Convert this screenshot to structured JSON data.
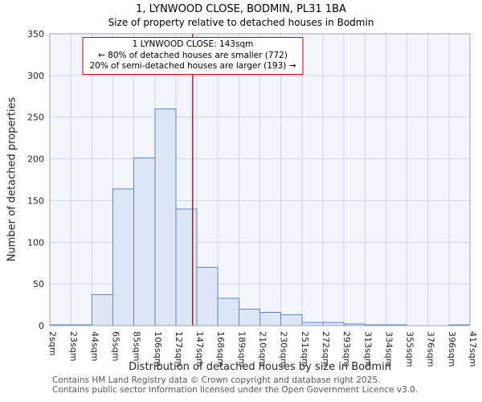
{
  "page": {
    "title": "1, LYNWOOD CLOSE, BODMIN, PL31 1BA",
    "subtitle": "Size of property relative to detached houses in Bodmin"
  },
  "annotation": {
    "line1": "1 LYNWOOD CLOSE: 143sqm",
    "line2": "← 80% of detached houses are smaller (772)",
    "line3": "20% of semi-detached houses are larger (193) →",
    "border_color": "#cc0000"
  },
  "footer": {
    "line1": "Contains HM Land Registry data © Crown copyright and database right 2025.",
    "line2": "Contains public sector information licensed under the Open Government Licence v3.0."
  },
  "chart_data": {
    "type": "bar",
    "title": "1, LYNWOOD CLOSE, BODMIN, PL31 1BA",
    "subtitle": "Size of property relative to detached houses in Bodmin",
    "xlabel": "Distribution of detached houses by size in Bodmin",
    "ylabel": "Number of detached properties",
    "bin_edges_sqm": [
      2,
      23,
      44,
      65,
      85,
      106,
      127,
      147,
      168,
      189,
      210,
      230,
      251,
      272,
      293,
      313,
      334,
      355,
      376,
      396,
      417
    ],
    "tick_suffix": "sqm",
    "values": [
      1,
      1,
      37,
      164,
      201,
      260,
      140,
      70,
      33,
      20,
      16,
      13,
      4,
      4,
      2,
      1,
      1,
      0,
      0,
      1
    ],
    "ylim": [
      0,
      350
    ],
    "ytick_step": 50,
    "marker_value_sqm": 143,
    "marker_color": "#aa0000",
    "bar_fill": "#dce6f5",
    "bar_stroke": "#5d87c5",
    "grid_color": "#ccd6e4",
    "plot_bg": "#f2f6fc",
    "plot_border": "#9aa4b0",
    "legend": "none",
    "grid": "on"
  }
}
